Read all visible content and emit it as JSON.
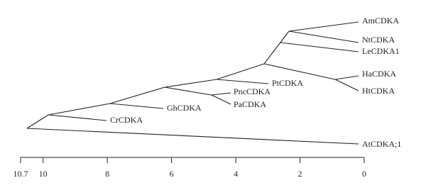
{
  "tree": {
    "leaves": [
      "AmCDKA",
      "NtCDKA",
      "LeCDKA1",
      "HaCDKA",
      "HtCDKA",
      "PtCDKA",
      "PncCDKA",
      "PaCDKA",
      "GhCDKA",
      "CrCDKA",
      "AtCDKA;1"
    ]
  },
  "scale": {
    "ticks": [
      10.7,
      10,
      8,
      6,
      4,
      2,
      0
    ]
  }
}
